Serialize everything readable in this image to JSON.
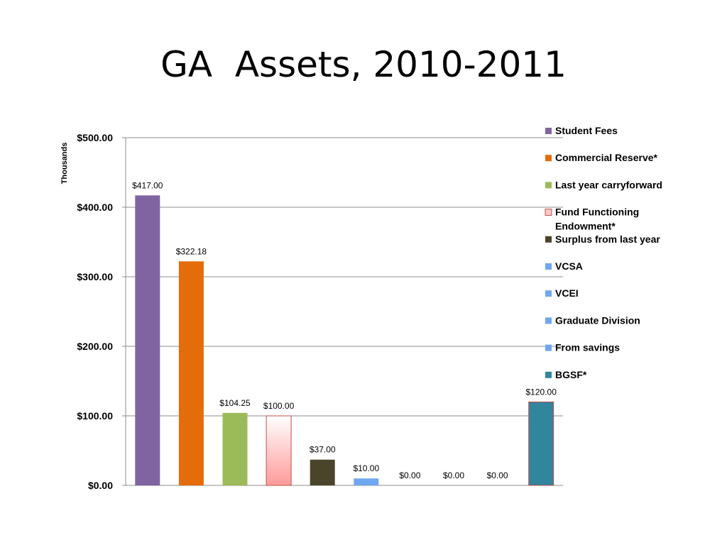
{
  "slide": {
    "title": "GA  Assets, 2010-2011"
  },
  "chart_data": {
    "type": "bar",
    "unit_label": "Thousands",
    "categories": [
      "Student Fees",
      "Commercial Reserve*",
      "Last year carryforward",
      "Fund Functioning Endowment*",
      "Surplus from last year",
      "VCSA",
      "VCEI",
      "Graduate Division",
      "From savings",
      "BGSF*"
    ],
    "values": [
      417.0,
      322.18,
      104.25,
      100.0,
      37.0,
      10.0,
      0.0,
      0.0,
      0.0,
      120.0
    ],
    "data_labels": [
      "$417.00",
      "$322.18",
      "$104.25",
      "$100.00",
      "$37.00",
      "$10.00",
      "$0.00",
      "$0.00",
      "$0.00",
      "$120.00"
    ],
    "colors": [
      "#8064a2",
      "#e46c0a",
      "#9bbb59",
      "#ffc7c7",
      "#4a452a",
      "#6fa8f0",
      "#6fa8f0",
      "#6fa8f0",
      "#6fa8f0",
      "#31859c"
    ],
    "ylim": [
      0,
      500
    ],
    "yticks": [
      0,
      100,
      200,
      300,
      400,
      500
    ],
    "ytick_labels": [
      "$0.00",
      "$100.00",
      "$200.00",
      "$300.00",
      "$400.00",
      "$500.00"
    ],
    "grid": true,
    "legend_position": "right",
    "legend": [
      {
        "lines": [
          "Student Fees"
        ],
        "color": "#8064a2"
      },
      {
        "lines": [
          "Commercial Reserve*"
        ],
        "color": "#e46c0a"
      },
      {
        "lines": [
          "Last year carryforward"
        ],
        "color": "#9bbb59"
      },
      {
        "lines": [
          "Fund Functioning",
          "Endowment*"
        ],
        "color": "#ffc7c7"
      },
      {
        "lines": [
          "Surplus from last year"
        ],
        "color": "#4a452a"
      },
      {
        "lines": [
          "VCSA"
        ],
        "color": "#6fa8f0"
      },
      {
        "lines": [
          "VCEI"
        ],
        "color": "#6fa8f0"
      },
      {
        "lines": [
          "Graduate Division"
        ],
        "color": "#6fa8f0"
      },
      {
        "lines": [
          "From savings"
        ],
        "color": "#6fa8f0"
      },
      {
        "lines": [
          "BGSF*"
        ],
        "color": "#31859c"
      }
    ]
  }
}
